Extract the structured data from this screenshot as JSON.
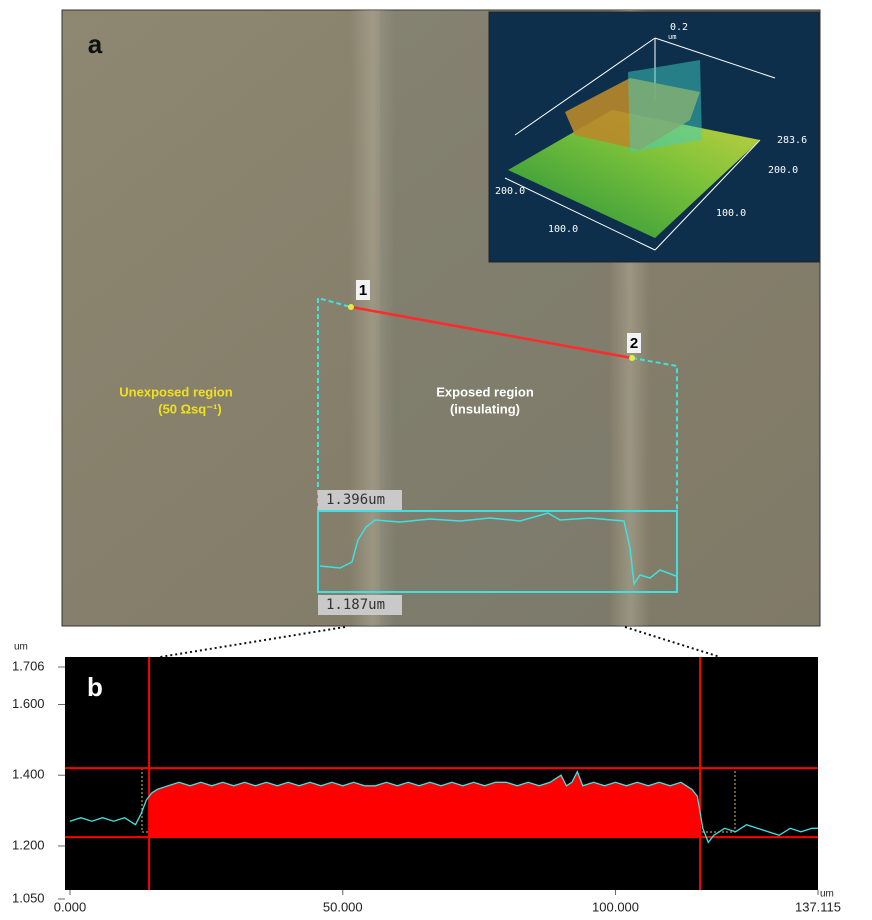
{
  "panel_a": {
    "label": "a",
    "regions": [
      {
        "name": "Unexposed region",
        "note": "(50 Ωsq⁻¹)"
      },
      {
        "name": "Exposed region",
        "note": "(insulating)"
      }
    ],
    "markers": [
      "1",
      "2"
    ],
    "readouts": [
      "1.396um",
      "1.187um"
    ],
    "inset_labels": [
      "0.2",
      "um",
      "283.6",
      "200.0",
      "200.0",
      "100.0",
      "100.0"
    ]
  },
  "chart_data": {
    "type": "line",
    "label": "b",
    "y_unit": "um",
    "x_unit": "um",
    "x": [
      0,
      2,
      4,
      6,
      8,
      10,
      11,
      12,
      13,
      14,
      15,
      16,
      18,
      20,
      22,
      24,
      26,
      28,
      30,
      32,
      34,
      36,
      38,
      40,
      42,
      44,
      46,
      48,
      50,
      52,
      54,
      56,
      58,
      60,
      62,
      64,
      66,
      68,
      70,
      72,
      74,
      76,
      78,
      80,
      82,
      84,
      86,
      88,
      90,
      91,
      92,
      93,
      94,
      96,
      98,
      100,
      102,
      104,
      106,
      108,
      110,
      112,
      114,
      115,
      116,
      117,
      118,
      120,
      122,
      124,
      126,
      128,
      130,
      132,
      134,
      136,
      137.115
    ],
    "values": [
      1.27,
      1.28,
      1.27,
      1.28,
      1.27,
      1.28,
      1.27,
      1.26,
      1.29,
      1.33,
      1.35,
      1.36,
      1.37,
      1.38,
      1.37,
      1.38,
      1.37,
      1.38,
      1.37,
      1.38,
      1.37,
      1.38,
      1.37,
      1.38,
      1.37,
      1.38,
      1.37,
      1.38,
      1.37,
      1.38,
      1.37,
      1.37,
      1.38,
      1.37,
      1.38,
      1.37,
      1.38,
      1.37,
      1.38,
      1.37,
      1.38,
      1.37,
      1.38,
      1.38,
      1.37,
      1.38,
      1.37,
      1.38,
      1.4,
      1.37,
      1.38,
      1.41,
      1.37,
      1.38,
      1.37,
      1.38,
      1.37,
      1.38,
      1.37,
      1.38,
      1.37,
      1.38,
      1.36,
      1.34,
      1.25,
      1.21,
      1.23,
      1.25,
      1.24,
      1.26,
      1.25,
      1.24,
      1.23,
      1.25,
      1.24,
      1.25,
      1.25
    ],
    "color": "#45e0e0",
    "fill": "#ff0000",
    "cursor_color": "#ff0000",
    "cursor_x": [
      14.5,
      115.5
    ],
    "cursor_y": [
      1.42,
      1.225
    ],
    "xlim": [
      0,
      137.115
    ],
    "ylim": [
      1.05,
      1.706
    ],
    "xticks": [
      {
        "value": 0,
        "label": "0.000"
      },
      {
        "value": 50,
        "label": "50.000"
      },
      {
        "value": 100,
        "label": "100.000"
      },
      {
        "value": 137.115,
        "label": "137.115"
      }
    ],
    "yticks": [
      {
        "value": 1.05,
        "label": "1.050"
      },
      {
        "value": 1.2,
        "label": "1.200"
      },
      {
        "value": 1.4,
        "label": "1.400"
      },
      {
        "value": 1.6,
        "label": "1.600"
      },
      {
        "value": 1.706,
        "label": "1.706"
      }
    ]
  }
}
